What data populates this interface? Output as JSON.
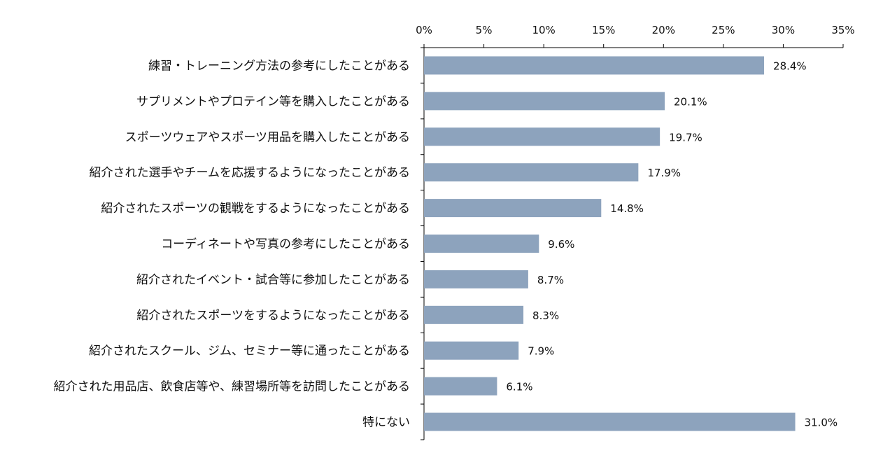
{
  "chart_data": {
    "type": "bar",
    "orientation": "horizontal",
    "title": "",
    "xlabel": "",
    "ylabel": "",
    "xlim": [
      0,
      35
    ],
    "x_ticks": [
      0,
      5,
      10,
      15,
      20,
      25,
      30,
      35
    ],
    "x_tick_labels": [
      "0%",
      "5%",
      "10%",
      "15%",
      "20%",
      "25%",
      "30%",
      "35%"
    ],
    "x_axis_position": "top",
    "grid": false,
    "legend": null,
    "bar_color": "#8DA3BD",
    "categories": [
      "練習・トレーニング方法の参考にしたことがある",
      "サプリメントやプロテイン等を購入したことがある",
      "スポーツウェアやスポーツ用品を購入したことがある",
      "紹介された選手やチームを応援するようになったことがある",
      "紹介されたスポーツの観戦をするようになったことがある",
      "コーディネートや写真の参考にしたことがある",
      "紹介されたイベント・試合等に参加したことがある",
      "紹介されたスポーツをするようになったことがある",
      "紹介されたスクール、ジム、セミナー等に通ったことがある",
      "紹介された用品店、飲食店等や、練習場所等を訪問したことがある",
      "特にない"
    ],
    "values": [
      28.4,
      20.1,
      19.7,
      17.9,
      14.8,
      9.6,
      8.7,
      8.3,
      7.9,
      6.1,
      31.0
    ],
    "value_labels": [
      "28.4%",
      "20.1%",
      "19.7%",
      "17.9%",
      "14.8%",
      "9.6%",
      "8.7%",
      "8.3%",
      "7.9%",
      "6.1%",
      "31.0%"
    ]
  }
}
